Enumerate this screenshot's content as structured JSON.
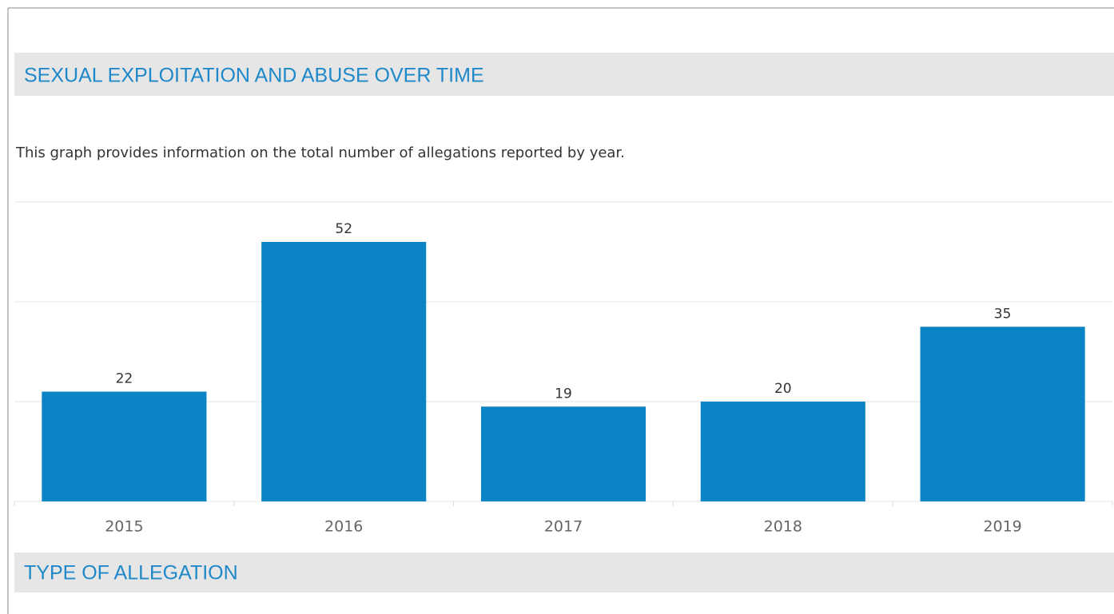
{
  "header": {
    "title": "SEXUAL EXPLOITATION AND ABUSE OVER TIME"
  },
  "description": "This graph provides information on the total number of allegations reported by year.",
  "chart_data": {
    "type": "bar",
    "categories": [
      "2015",
      "2016",
      "2017",
      "2018",
      "2019"
    ],
    "values": [
      22,
      52,
      19,
      20,
      35
    ],
    "color": "#0b84c6",
    "ylim": [
      0,
      60
    ],
    "yticks": [
      0,
      20,
      40,
      60
    ],
    "grid": true,
    "show_tick_labels": false
  },
  "section": {
    "title": "TYPE OF ALLEGATION"
  }
}
